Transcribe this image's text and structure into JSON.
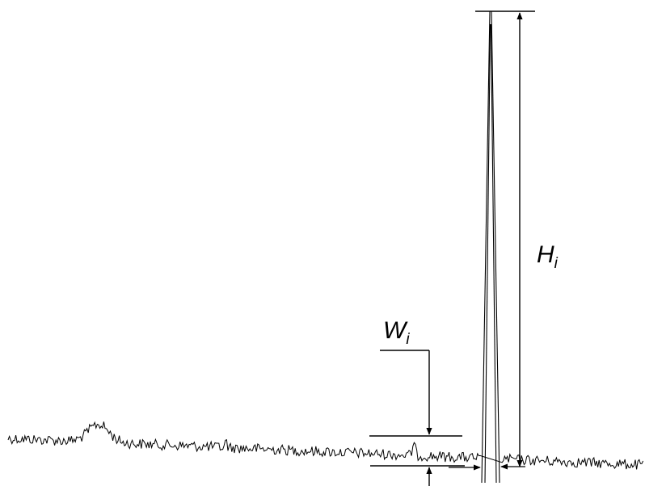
{
  "labels": {
    "height_main": "H",
    "height_sub": "i",
    "width_main": "W",
    "width_sub": "i"
  },
  "colors": {
    "ink": "#000000",
    "background": "#ffffff"
  }
}
